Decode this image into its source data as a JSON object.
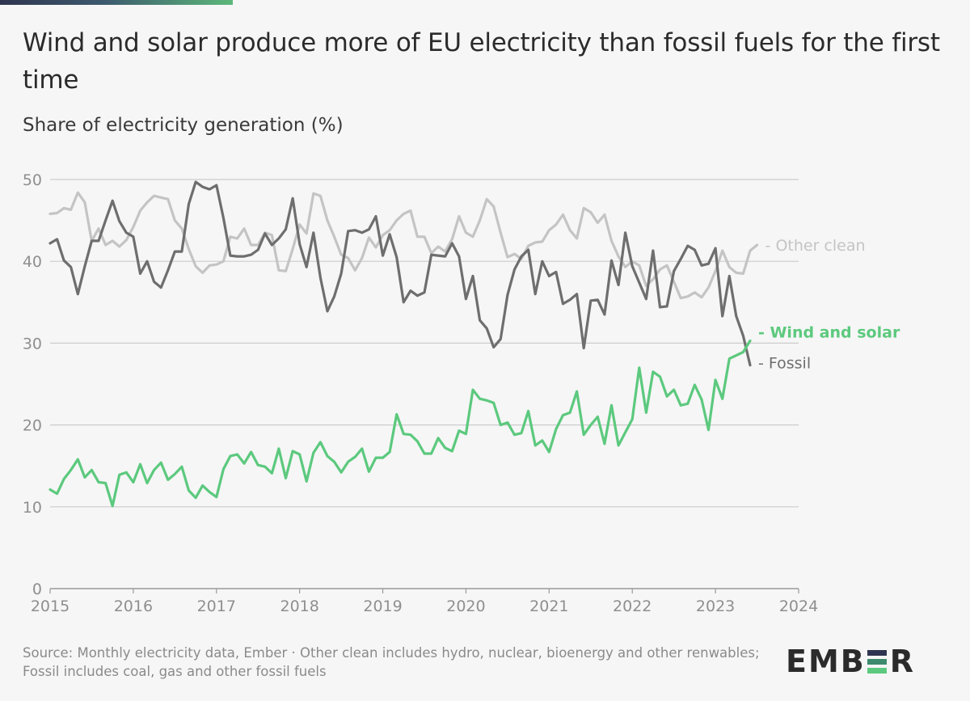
{
  "header": {
    "title": "Wind and solar produce more of EU electricity than fossil fuels for the first time",
    "subtitle": "Share of electricity generation (%)"
  },
  "footer": {
    "source": "Source: Monthly electricity data, Ember · Other clean includes hydro, nuclear, bioenergy and other renwables; Fossil includes coal, gas and other fossil fuels",
    "logo_text_left": "EMB",
    "logo_text_right": "R"
  },
  "colors": {
    "fossil": "#6e6e6e",
    "other_clean": "#c4c4c4",
    "wind_solar": "#5cc97e",
    "grid": "#cccccc",
    "axis_text": "#8f8f8f",
    "logo_bar_1": "#2f3550",
    "logo_bar_2": "#3d8a6e",
    "logo_bar_3": "#5cc97e"
  },
  "chart_data": {
    "type": "line",
    "title": "Wind and solar produce more of EU electricity than fossil fuels for the first time",
    "ylabel": "Share of electricity generation (%)",
    "xlabel": "",
    "ylim": [
      0,
      50
    ],
    "xlim": [
      2015,
      2024
    ],
    "y_ticks": [
      0,
      10,
      20,
      30,
      40,
      50
    ],
    "x_ticks": [
      2015,
      2016,
      2017,
      2018,
      2019,
      2020,
      2021,
      2022,
      2023,
      2024
    ],
    "x_tick_labels": [
      "2015",
      "2016",
      "2017",
      "2018",
      "2019",
      "2020",
      "2021",
      "2022",
      "2023",
      "2024"
    ],
    "grid": true,
    "x_start": 2015.0,
    "x_step_months": 1,
    "series": [
      {
        "name": "Other clean",
        "label": "- Other clean",
        "color_key": "other_clean",
        "values": [
          45.8,
          45.9,
          46.5,
          46.3,
          48.4,
          47.2,
          42.5,
          44.0,
          42.0,
          42.5,
          41.8,
          42.6,
          44.2,
          46.2,
          47.2,
          48.0,
          47.8,
          47.6,
          45.0,
          44.0,
          41.5,
          39.4,
          38.6,
          39.5,
          39.6,
          40.0,
          43.0,
          42.8,
          44.0,
          42.0,
          42.0,
          43.5,
          43.2,
          38.9,
          38.8,
          41.5,
          44.5,
          43.4,
          48.3,
          48.0,
          45.0,
          43.0,
          40.8,
          40.4,
          38.9,
          40.4,
          42.9,
          41.7,
          43.2,
          43.8,
          45.0,
          45.8,
          46.2,
          43.0,
          43.0,
          41.0,
          41.8,
          41.2,
          42.7,
          45.5,
          43.5,
          43.0,
          45.0,
          47.6,
          46.7,
          43.5,
          40.5,
          40.9,
          40.3,
          41.9,
          42.3,
          42.4,
          43.8,
          44.5,
          45.7,
          43.8,
          42.8,
          46.5,
          46.0,
          44.7,
          45.7,
          42.5,
          40.6,
          39.3,
          40.0,
          39.5,
          37.0,
          37.8,
          39.0,
          39.5,
          37.5,
          35.5,
          35.7,
          36.2,
          35.6,
          36.8,
          38.8,
          41.3,
          39.3,
          38.6,
          38.5,
          41.3,
          42.0
        ]
      },
      {
        "name": "Fossil",
        "label": "- Fossil",
        "color_key": "fossil",
        "values": [
          42.2,
          42.7,
          40.1,
          39.3,
          36.0,
          39.4,
          42.5,
          42.5,
          45.0,
          47.4,
          44.9,
          43.5,
          43.0,
          38.5,
          40.0,
          37.5,
          36.8,
          38.9,
          41.2,
          41.2,
          47.0,
          49.7,
          49.1,
          48.8,
          49.3,
          45.3,
          40.7,
          40.6,
          40.6,
          40.8,
          41.4,
          43.4,
          42.0,
          42.8,
          43.9,
          47.7,
          42.1,
          39.3,
          43.5,
          38.0,
          33.9,
          35.7,
          38.5,
          43.7,
          43.8,
          43.5,
          43.9,
          45.5,
          40.7,
          43.3,
          40.5,
          35.0,
          36.4,
          35.8,
          36.2,
          40.8,
          40.7,
          40.6,
          42.2,
          40.6,
          35.4,
          38.2,
          32.8,
          31.8,
          29.5,
          30.5,
          35.9,
          39.0,
          40.6,
          41.4,
          36.0,
          40.0,
          38.2,
          38.7,
          34.8,
          35.3,
          36.0,
          29.4,
          35.2,
          35.3,
          33.5,
          40.1,
          37.1,
          43.5,
          39.4,
          37.4,
          35.4,
          41.3,
          34.4,
          34.5,
          38.8,
          40.3,
          41.9,
          41.4,
          39.5,
          39.7,
          41.6,
          33.3,
          38.2,
          33.3,
          30.9,
          27.3
        ]
      },
      {
        "name": "Wind and solar",
        "label": "- Wind and solar",
        "color_key": "wind_solar",
        "values": [
          12.1,
          11.6,
          13.4,
          14.5,
          15.8,
          13.6,
          14.5,
          13.0,
          12.9,
          10.1,
          13.9,
          14.2,
          13.0,
          15.2,
          12.9,
          14.5,
          15.4,
          13.3,
          14.0,
          14.9,
          12.0,
          11.1,
          12.6,
          11.8,
          11.2,
          14.6,
          16.2,
          16.4,
          15.3,
          16.7,
          15.1,
          14.9,
          14.1,
          17.1,
          13.5,
          16.8,
          16.4,
          13.1,
          16.6,
          17.9,
          16.2,
          15.5,
          14.2,
          15.5,
          16.1,
          17.1,
          14.3,
          16.0,
          16.0,
          16.7,
          21.3,
          18.9,
          18.8,
          18.0,
          16.5,
          16.5,
          18.4,
          17.2,
          16.8,
          19.3,
          18.9,
          24.3,
          23.2,
          23.0,
          22.7,
          20.0,
          20.3,
          18.8,
          19.0,
          21.7,
          17.5,
          18.1,
          16.7,
          19.5,
          21.2,
          21.5,
          24.1,
          18.8,
          20.0,
          21.0,
          17.7,
          22.4,
          17.5,
          19.1,
          20.7,
          27.0,
          21.5,
          26.5,
          25.9,
          23.5,
          24.3,
          22.4,
          22.6,
          24.9,
          23.1,
          19.4,
          25.5,
          23.2,
          28.1,
          28.5,
          28.9,
          30.3
        ]
      }
    ]
  }
}
